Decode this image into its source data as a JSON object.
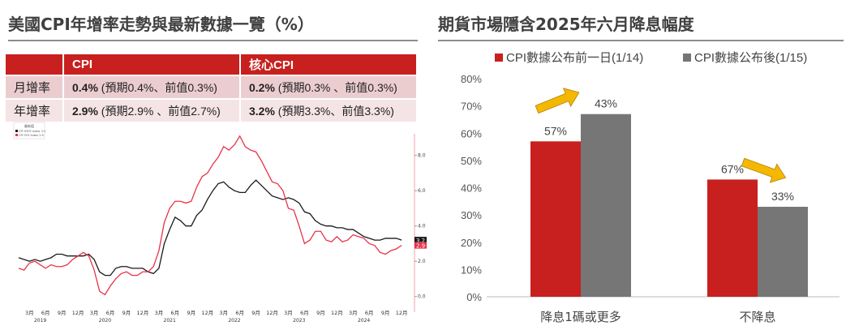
{
  "left": {
    "title": "美國CPI年增率走勢與最新數據一覽（%）",
    "table": {
      "headers": [
        "",
        "CPI",
        "核心CPI"
      ],
      "rows": [
        {
          "label": "月增率",
          "cpi_bold": "0.4%",
          "cpi_rest": " (預期0.4%、前值0.3%)",
          "core_bold": "0.2%",
          "core_rest": " (預期0.3% 、前值0.3%)"
        },
        {
          "label": "年增率",
          "cpi_bold": "2.9%",
          "cpi_rest": " (預期2.9% 、前值2.7%)",
          "core_bold": "3.2%",
          "core_rest": " (預期3.3%、前值3.3%)"
        }
      ]
    }
  },
  "right": {
    "title": "期貨市場隱含2025年六月降息幅度"
  },
  "chart_data": [
    {
      "type": "line",
      "legend_title": "最新值",
      "ylim": [
        -0.6,
        9.5
      ],
      "yticks": [
        "0.0",
        "2.0",
        "4.0",
        "6.0",
        "8.0"
      ],
      "xticks": [
        "3月",
        "6月",
        "9月",
        "12月"
      ],
      "years": [
        "2019",
        "2020",
        "2021",
        "2022",
        "2023",
        "2024"
      ],
      "x_start": "2019-01",
      "x_end": "2024-12",
      "series": [
        {
          "name": "CPI XYOY Index",
          "last": "3.2",
          "color": "#1a1a1a",
          "values": [
            2.2,
            2.1,
            2.0,
            2.1,
            2.0,
            2.1,
            2.2,
            2.4,
            2.4,
            2.3,
            2.3,
            2.3,
            2.3,
            2.4,
            2.1,
            1.4,
            1.2,
            1.2,
            1.6,
            1.7,
            1.7,
            1.6,
            1.6,
            1.6,
            1.4,
            1.3,
            1.6,
            3.0,
            3.8,
            4.5,
            4.3,
            4.0,
            4.0,
            4.6,
            4.9,
            5.5,
            6.0,
            6.4,
            6.5,
            6.2,
            6.0,
            5.9,
            5.9,
            6.3,
            6.6,
            6.3,
            6.0,
            5.7,
            5.6,
            5.5,
            5.6,
            5.5,
            5.3,
            4.8,
            4.7,
            4.3,
            4.1,
            4.0,
            4.0,
            3.9,
            3.9,
            3.8,
            3.8,
            3.6,
            3.4,
            3.3,
            3.2,
            3.2,
            3.3,
            3.3,
            3.3,
            3.2
          ]
        },
        {
          "name": "CPI YOY Index",
          "last": "2.9",
          "color": "#e8334a",
          "values": [
            1.6,
            1.5,
            1.9,
            2.0,
            1.8,
            1.6,
            1.8,
            1.7,
            1.7,
            1.8,
            2.1,
            2.3,
            2.5,
            2.3,
            1.5,
            0.3,
            0.1,
            0.6,
            1.0,
            1.3,
            1.4,
            1.2,
            1.2,
            1.4,
            1.4,
            1.7,
            2.6,
            4.2,
            5.0,
            5.4,
            5.4,
            5.3,
            5.4,
            6.2,
            6.8,
            7.0,
            7.5,
            7.9,
            8.5,
            8.3,
            8.6,
            9.1,
            8.5,
            8.3,
            8.2,
            7.7,
            7.1,
            6.5,
            6.4,
            6.0,
            5.0,
            4.9,
            4.0,
            3.0,
            3.2,
            3.7,
            3.7,
            3.2,
            3.1,
            3.4,
            3.1,
            3.2,
            3.5,
            3.4,
            3.3,
            3.0,
            2.9,
            2.5,
            2.4,
            2.6,
            2.7,
            2.9
          ]
        }
      ]
    },
    {
      "type": "bar",
      "categories": [
        "降息1碼或更多",
        "不降息"
      ],
      "ylim": [
        0,
        80
      ],
      "yticks": [
        "0%",
        "10%",
        "20%",
        "30%",
        "40%",
        "50%",
        "60%",
        "70%",
        "80%"
      ],
      "series": [
        {
          "name": "CPI數據公布前一日(1/14)",
          "color": "#c8201e",
          "values": [
            57,
            43
          ]
        },
        {
          "name": "CPI數據公布後(1/15)",
          "color": "#767676",
          "values": [
            67,
            33
          ]
        }
      ],
      "data_labels": [
        "57%",
        "43%",
        "67%",
        "33%"
      ],
      "arrow_color": "#f5b800"
    }
  ]
}
